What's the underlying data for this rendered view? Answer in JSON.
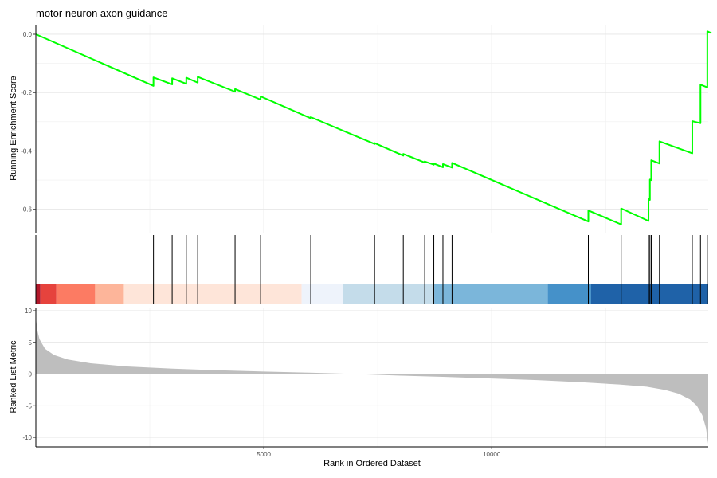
{
  "chart_data": {
    "type": "line",
    "title": "motor neuron axon guidance",
    "xlabel": "Rank in Ordered Dataset",
    "xlim": [
      0,
      14750
    ],
    "x_ticks": [
      5000,
      10000
    ],
    "grid": true,
    "panels": {
      "running_score": {
        "ylabel": "Running Enrichment Score",
        "ylim": [
          -0.68,
          0.03
        ],
        "y_ticks": [
          0.0,
          -0.2,
          -0.4,
          -0.6
        ],
        "line_color": "#00FF00",
        "points": [
          [
            0,
            0.0
          ],
          [
            2580,
            -0.177
          ],
          [
            2580,
            -0.148
          ],
          [
            2990,
            -0.172
          ],
          [
            2990,
            -0.151
          ],
          [
            3300,
            -0.17
          ],
          [
            3300,
            -0.149
          ],
          [
            3550,
            -0.166
          ],
          [
            3550,
            -0.146
          ],
          [
            4370,
            -0.197
          ],
          [
            4370,
            -0.188
          ],
          [
            4930,
            -0.224
          ],
          [
            4930,
            -0.213
          ],
          [
            6030,
            -0.288
          ],
          [
            6030,
            -0.284
          ],
          [
            7430,
            -0.376
          ],
          [
            7430,
            -0.373
          ],
          [
            8060,
            -0.416
          ],
          [
            8060,
            -0.41
          ],
          [
            8530,
            -0.44
          ],
          [
            8530,
            -0.436
          ],
          [
            8730,
            -0.447
          ],
          [
            8730,
            -0.443
          ],
          [
            8930,
            -0.456
          ],
          [
            8930,
            -0.445
          ],
          [
            9130,
            -0.457
          ],
          [
            9130,
            -0.441
          ],
          [
            12120,
            -0.642
          ],
          [
            12120,
            -0.604
          ],
          [
            12840,
            -0.652
          ],
          [
            12840,
            -0.597
          ],
          [
            13440,
            -0.64
          ],
          [
            13440,
            -0.565
          ],
          [
            13470,
            -0.568
          ],
          [
            13470,
            -0.498
          ],
          [
            13500,
            -0.5
          ],
          [
            13500,
            -0.432
          ],
          [
            13680,
            -0.443
          ],
          [
            13680,
            -0.367
          ],
          [
            14400,
            -0.408
          ],
          [
            14400,
            -0.298
          ],
          [
            14580,
            -0.305
          ],
          [
            14580,
            -0.173
          ],
          [
            14730,
            -0.182
          ],
          [
            14730,
            0.01
          ],
          [
            14820,
            0.004
          ]
        ]
      },
      "hits": {
        "positions": [
          2580,
          2990,
          3300,
          3550,
          4370,
          4930,
          6030,
          7430,
          8060,
          8530,
          8730,
          8930,
          9130,
          12120,
          12840,
          13440,
          13470,
          13500,
          13680,
          14400,
          14580,
          14730
        ],
        "color_bands": [
          {
            "from": 0,
            "to": 100,
            "color": "#B2182B"
          },
          {
            "from": 100,
            "to": 450,
            "color": "#E6433D"
          },
          {
            "from": 450,
            "to": 1300,
            "color": "#FC7B63"
          },
          {
            "from": 1300,
            "to": 1930,
            "color": "#FDB59A"
          },
          {
            "from": 1930,
            "to": 5830,
            "color": "#FEE5D9"
          },
          {
            "from": 5830,
            "to": 6730,
            "color": "#EEF3FB"
          },
          {
            "from": 6730,
            "to": 8740,
            "color": "#C4DCEA"
          },
          {
            "from": 8740,
            "to": 11230,
            "color": "#7BB6DA"
          },
          {
            "from": 11230,
            "to": 12180,
            "color": "#4591C9"
          },
          {
            "from": 12180,
            "to": 14750,
            "color": "#1F62A8"
          }
        ]
      },
      "ranked_metric": {
        "ylabel": "Ranked List Metric",
        "ylim": [
          -11.5,
          10.5
        ],
        "y_ticks": [
          10,
          5,
          0,
          -5,
          -10
        ],
        "fill_color": "#BEBEBE",
        "points": [
          [
            0,
            9.0
          ],
          [
            30,
            7.0
          ],
          [
            80,
            5.5
          ],
          [
            200,
            4.0
          ],
          [
            400,
            3.0
          ],
          [
            700,
            2.3
          ],
          [
            1200,
            1.7
          ],
          [
            2000,
            1.2
          ],
          [
            3000,
            0.85
          ],
          [
            4000,
            0.6
          ],
          [
            5000,
            0.4
          ],
          [
            6000,
            0.22
          ],
          [
            6700,
            0.08
          ],
          [
            7000,
            0.0
          ],
          [
            8000,
            -0.25
          ],
          [
            9000,
            -0.45
          ],
          [
            10000,
            -0.7
          ],
          [
            11000,
            -0.95
          ],
          [
            12000,
            -1.3
          ],
          [
            12800,
            -1.65
          ],
          [
            13400,
            -2.0
          ],
          [
            13800,
            -2.5
          ],
          [
            14100,
            -3.1
          ],
          [
            14350,
            -4.0
          ],
          [
            14500,
            -5.0
          ],
          [
            14620,
            -6.5
          ],
          [
            14700,
            -8.5
          ],
          [
            14750,
            -11.0
          ]
        ]
      }
    }
  }
}
